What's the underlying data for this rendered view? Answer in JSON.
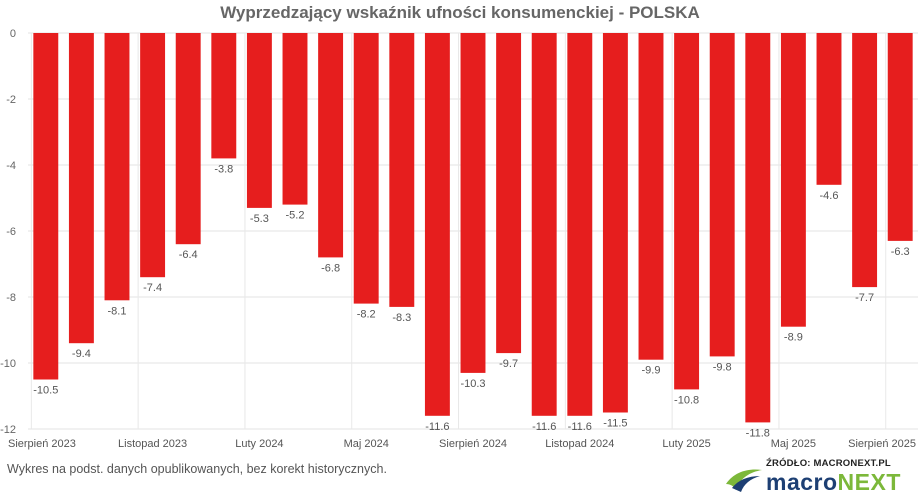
{
  "chart_data": {
    "type": "bar",
    "title": "Wyprzedzający wskaźnik ufności konsumenckiej - POLSKA",
    "xlabel": "",
    "ylabel": "",
    "ylim": [
      -12,
      0
    ],
    "yticks": [
      0,
      -2,
      -4,
      -6,
      -8,
      -10,
      -12
    ],
    "xtick_labels": [
      {
        "index": 0,
        "label": "Sierpień 2023"
      },
      {
        "index": 3,
        "label": "Listopad 2023"
      },
      {
        "index": 6,
        "label": "Luty 2024"
      },
      {
        "index": 9,
        "label": "Maj 2024"
      },
      {
        "index": 12,
        "label": "Sierpień 2024"
      },
      {
        "index": 15,
        "label": "Listopad 2024"
      },
      {
        "index": 18,
        "label": "Luty 2025"
      },
      {
        "index": 21,
        "label": "Maj 2025"
      },
      {
        "index": 24,
        "label": "Sierpień 2025"
      }
    ],
    "bar_color": "#e61e1e",
    "values": [
      -10.5,
      -9.4,
      -8.1,
      -7.4,
      -6.4,
      -3.8,
      -5.3,
      -5.2,
      -6.8,
      -8.2,
      -8.3,
      -11.6,
      -10.3,
      -9.7,
      -11.6,
      -11.6,
      -11.5,
      -9.9,
      -10.8,
      -9.8,
      -11.8,
      -8.9,
      -4.6,
      -7.7,
      -6.3
    ]
  },
  "footer": {
    "note": "Wykres na podst. danych opublikowanych, bez korekt historycznych.",
    "source_label": "ŹRÓDŁO: MACRONEXT.PL",
    "logo_part1": "macro",
    "logo_part2": "NEXT",
    "logo_color_dark": "#1d3f73",
    "logo_color_green": "#7cb83a"
  }
}
